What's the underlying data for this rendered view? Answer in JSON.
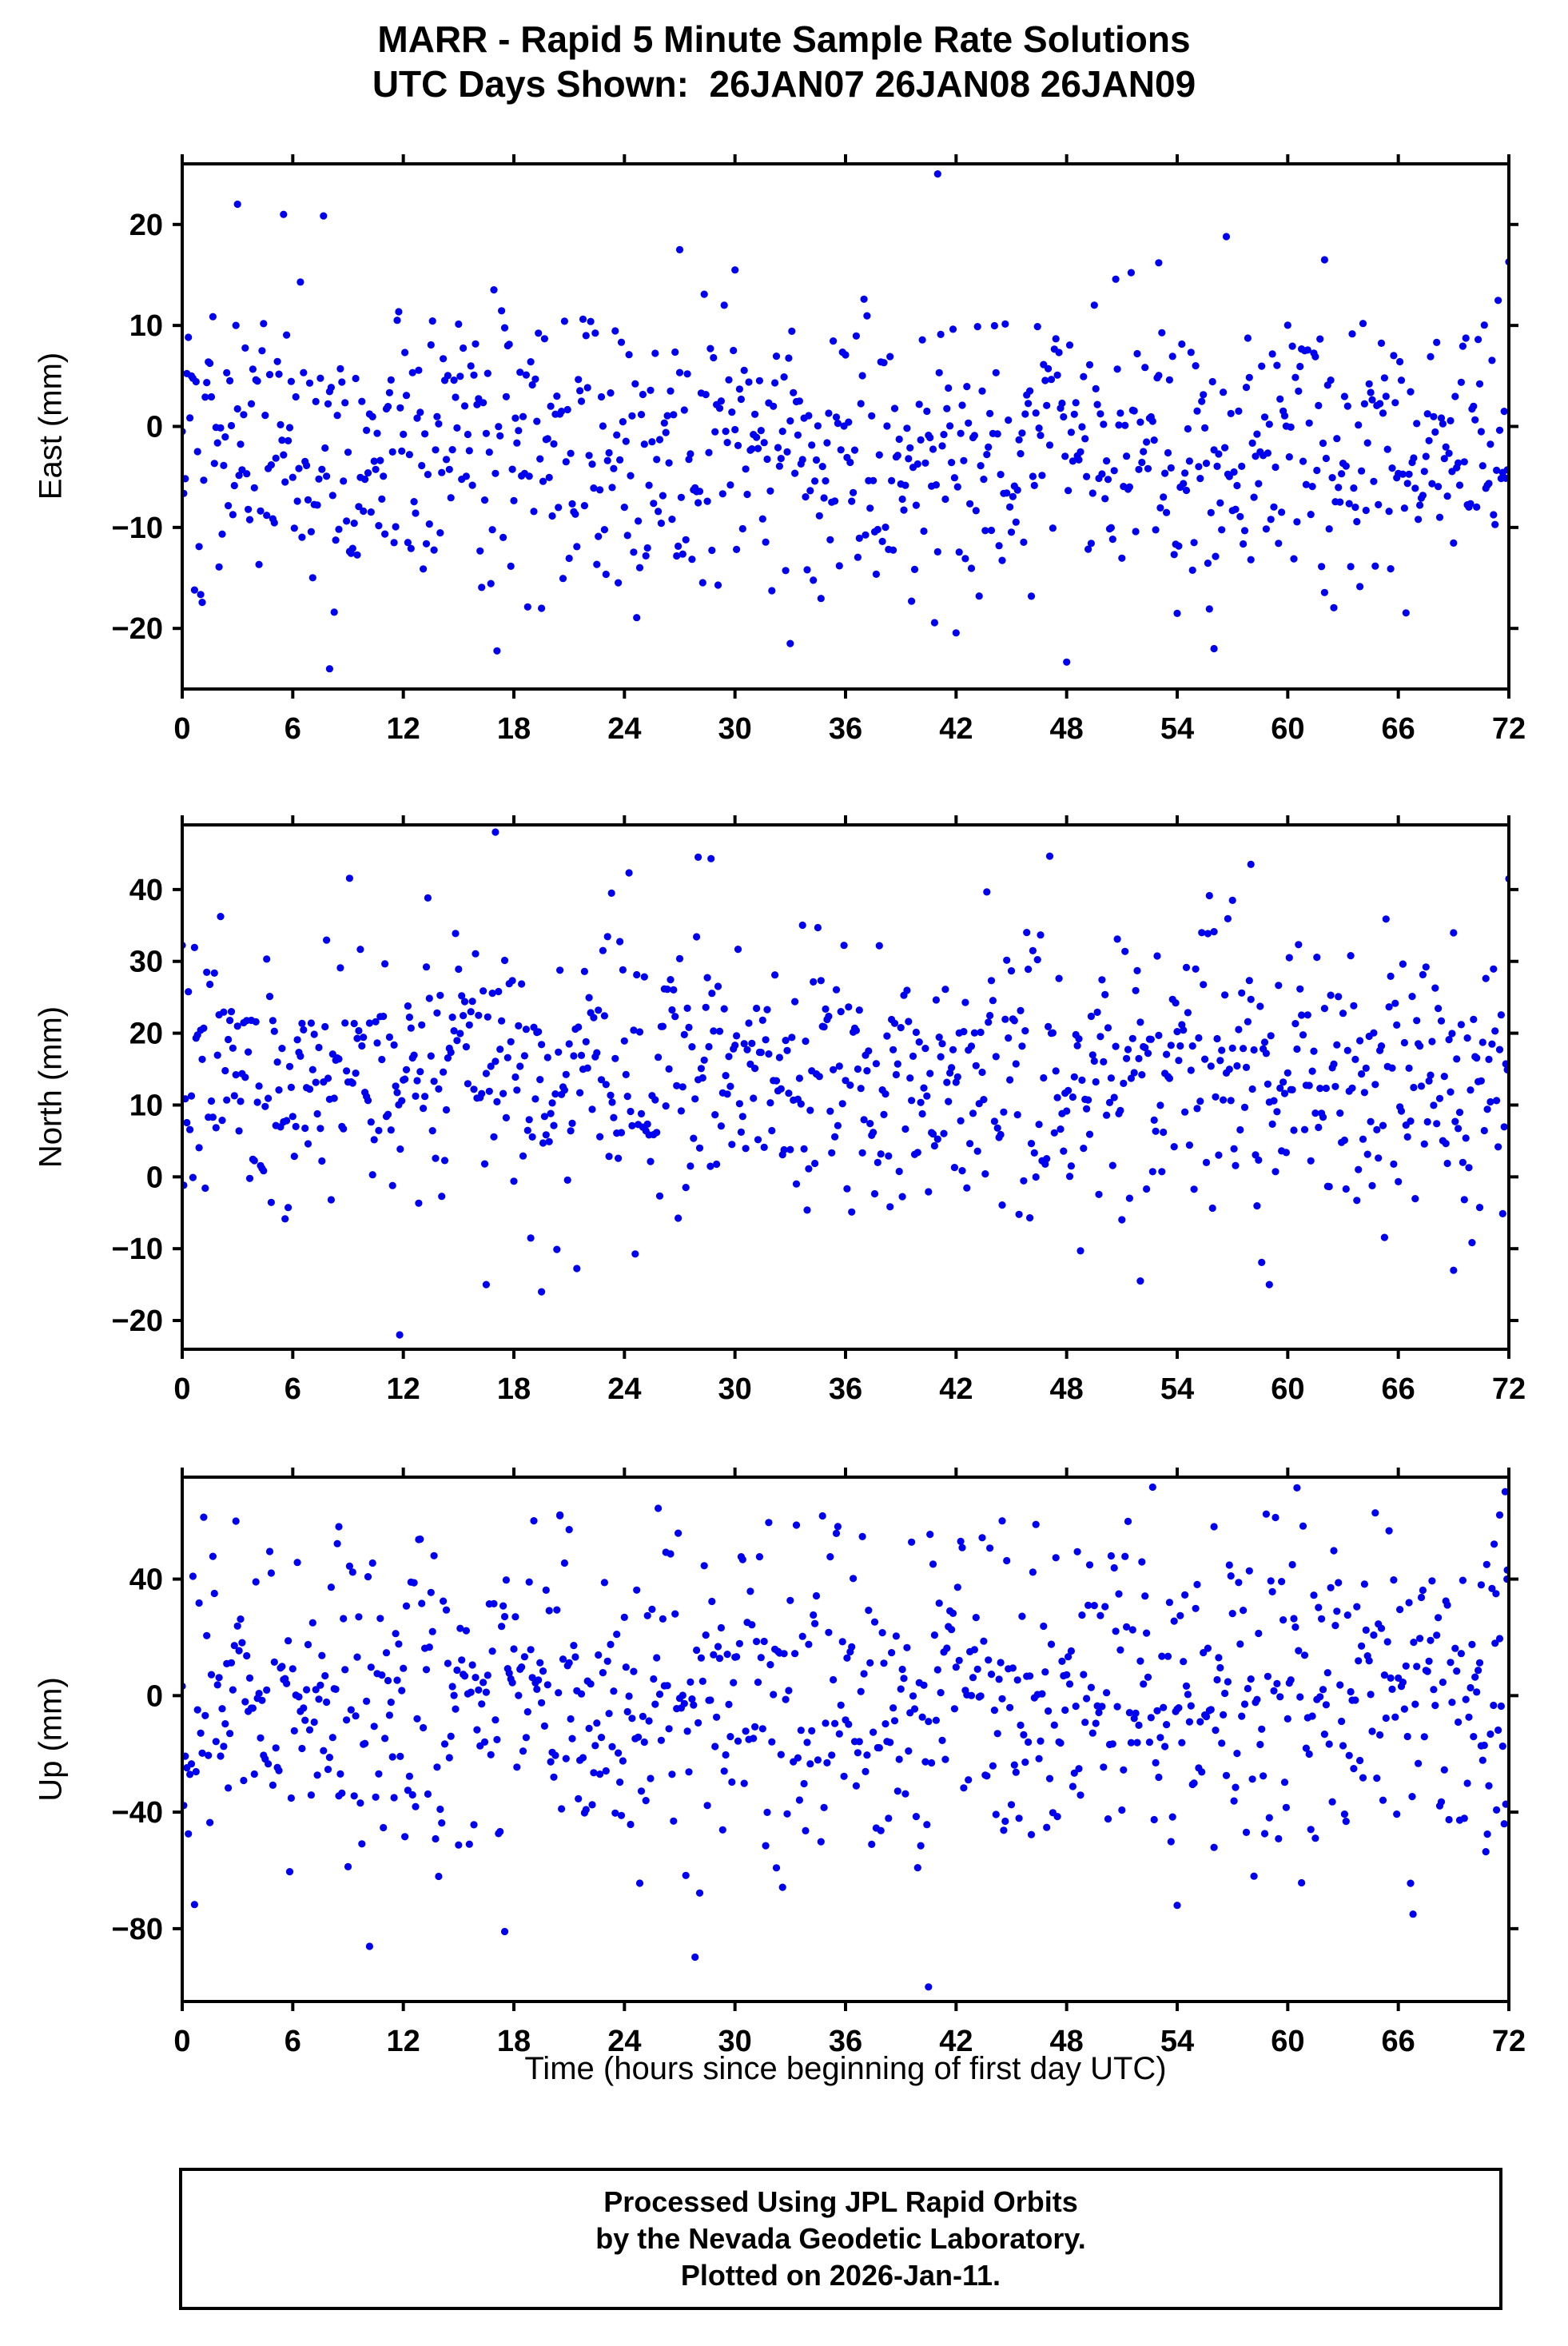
{
  "page": {
    "title": "MARR - Rapid 5 Minute Sample Rate Solutions",
    "subtitle": "UTC Days Shown:  26JAN07 26JAN08 26JAN09",
    "xlabel": "Time (hours since beginning of first day UTC)",
    "footer_lines": [
      "Processed Using JPL Rapid Orbits",
      "by the Nevada Geodetic Laboratory.",
      "Plotted on 2026-Jan-11."
    ]
  },
  "style": {
    "point_color": "#0000ee",
    "frame_color": "#000000",
    "point_radius": 4.6,
    "frame_width": 4,
    "tick_length": 12
  },
  "chart_data": [
    {
      "type": "scatter",
      "name": "east",
      "ylabel": "East (mm)",
      "xlim": [
        0,
        72
      ],
      "ylim": [
        -26,
        26
      ],
      "xticks": [
        0,
        6,
        12,
        18,
        24,
        30,
        36,
        42,
        48,
        54,
        60,
        66,
        72
      ],
      "yticks": [
        -20,
        -10,
        0,
        10,
        20
      ],
      "n_points": 864,
      "sample_interval_minutes": 5,
      "approx_mean": -1.8,
      "approx_std": 7.0,
      "seed": 101,
      "outliers": [
        [
          3,
          22
        ],
        [
          5.5,
          21
        ],
        [
          41,
          25
        ],
        [
          8,
          -24
        ],
        [
          27,
          17.5
        ],
        [
          30,
          15.5
        ],
        [
          56,
          -22
        ],
        [
          33,
          -21.5
        ],
        [
          72,
          16.3
        ],
        [
          53,
          16.2
        ],
        [
          62,
          16.5
        ]
      ]
    },
    {
      "type": "scatter",
      "name": "north",
      "ylabel": "North (mm)",
      "xlim": [
        0,
        72
      ],
      "ylim": [
        -24,
        49
      ],
      "xticks": [
        0,
        6,
        12,
        18,
        24,
        30,
        36,
        42,
        48,
        54,
        60,
        66,
        72
      ],
      "yticks": [
        -20,
        -10,
        0,
        10,
        20,
        30,
        40
      ],
      "n_points": 864,
      "sample_interval_minutes": 5,
      "approx_mean": 14.5,
      "approx_std": 9.0,
      "seed": 202,
      "outliers": [
        [
          17,
          48
        ],
        [
          28,
          44.5
        ],
        [
          28.7,
          44.3
        ],
        [
          23.3,
          39.5
        ],
        [
          11.8,
          -22
        ],
        [
          16.5,
          -15
        ],
        [
          19.5,
          -16
        ],
        [
          58,
          43.5
        ],
        [
          57,
          38.5
        ],
        [
          72,
          41.5
        ],
        [
          52,
          -14.5
        ],
        [
          59,
          -15
        ],
        [
          69,
          -13
        ]
      ]
    },
    {
      "type": "scatter",
      "name": "up",
      "ylabel": "Up (mm)",
      "xlim": [
        0,
        72
      ],
      "ylim": [
        -105,
        75
      ],
      "xticks": [
        0,
        6,
        12,
        18,
        24,
        30,
        36,
        42,
        48,
        54,
        60,
        66,
        72
      ],
      "yticks": [
        -80,
        -40,
        0,
        40
      ],
      "n_points": 864,
      "sample_interval_minutes": 5,
      "approx_mean": 0,
      "approx_std": 26,
      "seed": 303,
      "outliers": [
        [
          40.5,
          -100
        ],
        [
          17.5,
          -81
        ],
        [
          54,
          -72
        ],
        [
          66.8,
          -75
        ],
        [
          8.5,
          58
        ],
        [
          20.5,
          62
        ],
        [
          21,
          57
        ],
        [
          44.5,
          60
        ],
        [
          56,
          58
        ],
        [
          70.5,
          38
        ],
        [
          70.8,
          45
        ],
        [
          71.2,
          52
        ],
        [
          71.5,
          62
        ],
        [
          71.8,
          70
        ],
        [
          71.9,
          40
        ],
        [
          71.3,
          35
        ]
      ]
    }
  ]
}
